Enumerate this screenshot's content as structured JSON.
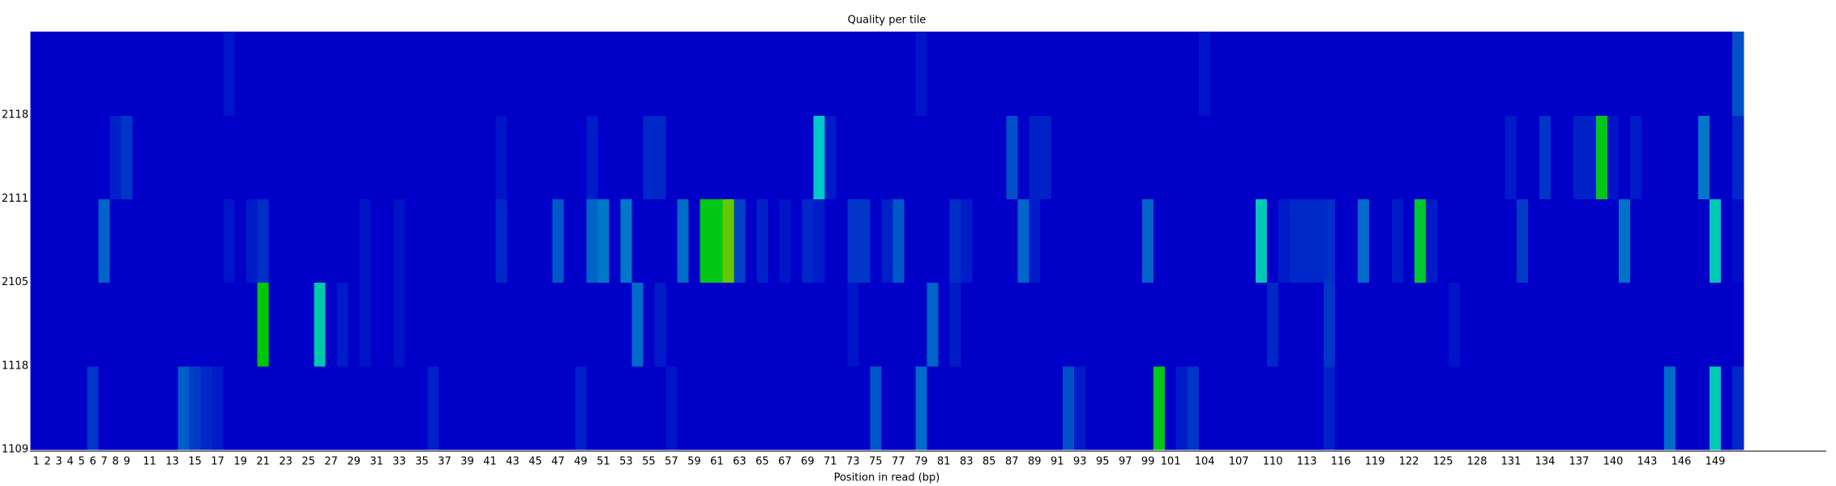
{
  "chart_data": {
    "type": "heatmap",
    "title": "Quality per tile",
    "x_label": "Position in read (bp)",
    "x": [
      1,
      2,
      3,
      4,
      5,
      6,
      7,
      8,
      9,
      null,
      11,
      null,
      13,
      null,
      15,
      null,
      17,
      null,
      19,
      null,
      21,
      null,
      23,
      null,
      25,
      null,
      27,
      null,
      29,
      null,
      31,
      null,
      33,
      null,
      35,
      null,
      37,
      null,
      39,
      null,
      41,
      null,
      43,
      null,
      45,
      null,
      47,
      null,
      49,
      null,
      51,
      null,
      53,
      null,
      55,
      null,
      57,
      null,
      59,
      null,
      61,
      null,
      63,
      null,
      65,
      null,
      67,
      null,
      69,
      null,
      71,
      null,
      73,
      null,
      75,
      null,
      77,
      null,
      79,
      null,
      81,
      null,
      83,
      null,
      85,
      null,
      87,
      null,
      89,
      null,
      91,
      null,
      93,
      null,
      95,
      null,
      97,
      null,
      99,
      null,
      101,
      null,
      null,
      104,
      null,
      null,
      107,
      null,
      null,
      110,
      null,
      null,
      113,
      null,
      null,
      116,
      null,
      null,
      119,
      null,
      null,
      122,
      null,
      null,
      125,
      null,
      null,
      128,
      null,
      null,
      131,
      null,
      null,
      134,
      null,
      null,
      137,
      null,
      null,
      140,
      null,
      null,
      143,
      null,
      null,
      146,
      null,
      null,
      149,
      null,
      null
    ],
    "y": [
      1109,
      1118,
      2105,
      2111,
      2118
    ],
    "z": [
      [
        0,
        0,
        0,
        0,
        0,
        0.8,
        0,
        0,
        0,
        0,
        0,
        0,
        0,
        1.4,
        0.9,
        0.6,
        0.4,
        0,
        0,
        0,
        0,
        0,
        0,
        0,
        0,
        0,
        0,
        0,
        0,
        0,
        0,
        0,
        0,
        0,
        0,
        0.5,
        0,
        0,
        0,
        0,
        0,
        0,
        0,
        0,
        0,
        0,
        0,
        0,
        0.5,
        0,
        0,
        0,
        0,
        0,
        0,
        0,
        0.3,
        0,
        0,
        0,
        0,
        0,
        0,
        0,
        0,
        0,
        0,
        0,
        0,
        0,
        0,
        0,
        0,
        0,
        1.3,
        0,
        0,
        0,
        1.6,
        0,
        0,
        0,
        0,
        0,
        0,
        0,
        0,
        0,
        0,
        0,
        0,
        1.2,
        0.4,
        0,
        0,
        0,
        0,
        0,
        0,
        4.8,
        0,
        0.4,
        0.8,
        0,
        0,
        0,
        0,
        0,
        0,
        0,
        0,
        0,
        0,
        0,
        0.5,
        0,
        0,
        0,
        0,
        0,
        0,
        0,
        0,
        0,
        0,
        0,
        0,
        0,
        0,
        0,
        0,
        0,
        0,
        0,
        0,
        0,
        0,
        0,
        0,
        0,
        0,
        0,
        0,
        0,
        1.6,
        0,
        0,
        0,
        3.2,
        0,
        0.6
      ],
      [
        0,
        0,
        0,
        0,
        0,
        0,
        0,
        0,
        0,
        0,
        0,
        0,
        0,
        0,
        0,
        0,
        0,
        0,
        0,
        0,
        5,
        0,
        0,
        0,
        0,
        3.3,
        0,
        0.4,
        0,
        0.3,
        0,
        0,
        0.3,
        0,
        0,
        0,
        0,
        0,
        0,
        0,
        0,
        0,
        0,
        0,
        0,
        0,
        0,
        0,
        0,
        0,
        0,
        0,
        0,
        1.6,
        0,
        0.4,
        0,
        0,
        0,
        0,
        0,
        0,
        0,
        0,
        0,
        0,
        0,
        0,
        0,
        0,
        0,
        0,
        0.3,
        0,
        0,
        0,
        0,
        0,
        0,
        1.5,
        0,
        0.4,
        0,
        0,
        0,
        0,
        0,
        0,
        0,
        0,
        0,
        0,
        0,
        0,
        0,
        0,
        0,
        0,
        0,
        0,
        0,
        0,
        0,
        0,
        0,
        0,
        0,
        0,
        0,
        0.6,
        0,
        0,
        0,
        0,
        0.8,
        0,
        0,
        0,
        0,
        0,
        0,
        0,
        0,
        0,
        0,
        0.3,
        0,
        0,
        0,
        0,
        0,
        0,
        0,
        0,
        0,
        0,
        0,
        0,
        0,
        0,
        0,
        0,
        0,
        0,
        0,
        0,
        0,
        0,
        0,
        0,
        0
      ],
      [
        0,
        0,
        0,
        0,
        0,
        0,
        1.5,
        0,
        0,
        0,
        0,
        0,
        0,
        0,
        0,
        0,
        0,
        0.3,
        0,
        0.4,
        0.7,
        0,
        0,
        0,
        0,
        0,
        0,
        0,
        0,
        0.3,
        0,
        0,
        0.3,
        0,
        0,
        0,
        0,
        0,
        0,
        0,
        0,
        0.6,
        0,
        0,
        0,
        0,
        1.3,
        0,
        0,
        1.5,
        1.8,
        0,
        1.8,
        0,
        0,
        0,
        0,
        1.6,
        0,
        4.8,
        4.8,
        6,
        1,
        0,
        0.5,
        0,
        0.3,
        0,
        0.6,
        0.4,
        0,
        0,
        0.8,
        0.8,
        0,
        0.5,
        1.3,
        0,
        0,
        0,
        0,
        0.7,
        0.4,
        0,
        0,
        0,
        0,
        1.5,
        0.4,
        0,
        0,
        0,
        0,
        0,
        0,
        0,
        0,
        0,
        1.5,
        0,
        0,
        0,
        0,
        0,
        0,
        0,
        0,
        0,
        3.2,
        0,
        0.4,
        0.6,
        0.6,
        0.6,
        0.7,
        0,
        0,
        1.6,
        0,
        0,
        0.4,
        0,
        4.5,
        0.4,
        0,
        0,
        0,
        0,
        0,
        0,
        0,
        0.9,
        0,
        0,
        0,
        0,
        0,
        0,
        0,
        0,
        1.7,
        0,
        0,
        0,
        0,
        0,
        0,
        0,
        3.2,
        0,
        0.2
      ],
      [
        0,
        0,
        0,
        0,
        0,
        0,
        0,
        0.5,
        0.8,
        0,
        0,
        0,
        0,
        0,
        0,
        0,
        0,
        0,
        0,
        0,
        0,
        0,
        0,
        0,
        0,
        0,
        0,
        0,
        0,
        0,
        0,
        0,
        0,
        0,
        0,
        0,
        0,
        0,
        0,
        0,
        0,
        0.3,
        0,
        0,
        0,
        0,
        0,
        0,
        0,
        0.4,
        0,
        0,
        0,
        0,
        0.6,
        0.6,
        0,
        0,
        0,
        0,
        0,
        0,
        0,
        0,
        0,
        0,
        0,
        0,
        0,
        3,
        0.4,
        0,
        0,
        0,
        0,
        0,
        0,
        0,
        0,
        0,
        0,
        0,
        0,
        0,
        0,
        0,
        1.2,
        0,
        0.5,
        0.5,
        0,
        0,
        0,
        0,
        0,
        0,
        0,
        0,
        0,
        0,
        0,
        0,
        0,
        0,
        0,
        0,
        0,
        0,
        0,
        0,
        0,
        0,
        0,
        0,
        0,
        0,
        0,
        0,
        0,
        0,
        0,
        0,
        0,
        0,
        0,
        0,
        0,
        0,
        0,
        0,
        0.4,
        0,
        0,
        0.8,
        0,
        0,
        0.5,
        0.5,
        4.8,
        0.3,
        0,
        0.4,
        0,
        0,
        0,
        0,
        0,
        1.8,
        0,
        0,
        0.6
      ],
      [
        0,
        0,
        0,
        0,
        0,
        0,
        0,
        0,
        0,
        0,
        0,
        0,
        0,
        0,
        0,
        0,
        0,
        0.3,
        0,
        0,
        0,
        0,
        0,
        0,
        0,
        0,
        0,
        0,
        0,
        0,
        0,
        0,
        0,
        0,
        0,
        0,
        0,
        0,
        0,
        0,
        0,
        0,
        0,
        0,
        0,
        0,
        0,
        0,
        0,
        0,
        0,
        0,
        0,
        0,
        0,
        0,
        0,
        0,
        0,
        0,
        0,
        0,
        0,
        0,
        0,
        0,
        0,
        0,
        0,
        0,
        0,
        0,
        0,
        0,
        0,
        0,
        0,
        0,
        0.3,
        0,
        0,
        0,
        0,
        0,
        0,
        0,
        0,
        0,
        0,
        0,
        0,
        0,
        0,
        0,
        0,
        0,
        0,
        0,
        0,
        0,
        0,
        0,
        0,
        0.3,
        0,
        0,
        0,
        0,
        0,
        0,
        0,
        0,
        0,
        0,
        0,
        0,
        0,
        0,
        0,
        0,
        0,
        0,
        0,
        0,
        0,
        0,
        0,
        0,
        0,
        0,
        0,
        0,
        0,
        0,
        0,
        0,
        0,
        0,
        0,
        0,
        0,
        0,
        0,
        0,
        0,
        0,
        0,
        0,
        0,
        0,
        1.2
      ]
    ],
    "colorscale": [
      [
        0,
        "#0000c8"
      ],
      [
        3,
        "#00c8c8"
      ],
      [
        5,
        "#00c800"
      ],
      [
        7,
        "#c8c800"
      ],
      [
        10,
        "#c80000"
      ]
    ]
  }
}
